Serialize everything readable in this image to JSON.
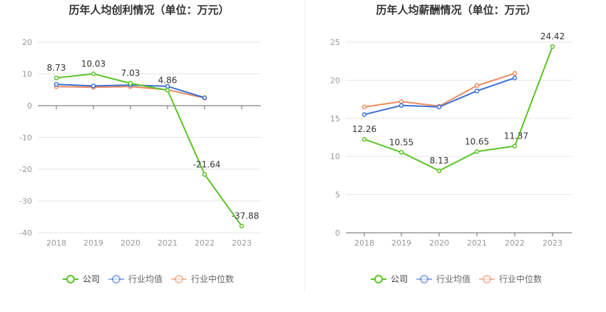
{
  "colors": {
    "company": "#5ac428",
    "industry_avg": "#3b6fd6",
    "industry_median": "#ee8a5f",
    "grid": "#e6e6e6",
    "axis_text": "#999999",
    "title": "#333333"
  },
  "legend": [
    {
      "key": "company",
      "label": "公司"
    },
    {
      "key": "industry_avg",
      "label": "行业均值"
    },
    {
      "key": "industry_median",
      "label": "行业中位数"
    }
  ],
  "chart_data": [
    {
      "type": "line",
      "title": "历年人均创利情况（单位：万元）",
      "categories": [
        "2018",
        "2019",
        "2020",
        "2021",
        "2022",
        "2023"
      ],
      "ylim": [
        -40,
        20
      ],
      "yticks": [
        20,
        10,
        0,
        -10,
        -20,
        -30,
        -40
      ],
      "grid": true,
      "legend_position": "bottom",
      "series": [
        {
          "key": "company",
          "name": "公司",
          "values": [
            8.73,
            10.03,
            7.03,
            4.86,
            -21.64,
            -37.88
          ],
          "labels": [
            "8.73",
            "10.03",
            "7.03",
            "4.86",
            "-21.64",
            "-37.88"
          ]
        },
        {
          "key": "industry_avg",
          "name": "行业均值",
          "values": [
            6.7,
            6.2,
            6.5,
            6.1,
            2.5,
            null
          ]
        },
        {
          "key": "industry_median",
          "name": "行业中位数",
          "values": [
            6.0,
            5.8,
            6.0,
            5.0,
            2.4,
            null
          ]
        }
      ]
    },
    {
      "type": "line",
      "title": "历年人均薪酬情况（单位：万元）",
      "categories": [
        "2018",
        "2019",
        "2020",
        "2021",
        "2022",
        "2023"
      ],
      "ylim": [
        0,
        25
      ],
      "yticks": [
        25,
        20,
        15,
        10,
        5,
        0
      ],
      "grid": true,
      "legend_position": "bottom",
      "series": [
        {
          "key": "company",
          "name": "公司",
          "values": [
            12.26,
            10.55,
            8.13,
            10.65,
            11.37,
            24.42
          ],
          "labels": [
            "12.26",
            "10.55",
            "8.13",
            "10.65",
            "11.37",
            "24.42"
          ]
        },
        {
          "key": "industry_avg",
          "name": "行业均值",
          "values": [
            15.5,
            16.7,
            16.5,
            18.6,
            20.3,
            null
          ]
        },
        {
          "key": "industry_median",
          "name": "行业中位数",
          "values": [
            16.5,
            17.2,
            16.6,
            19.3,
            20.9,
            null
          ]
        }
      ]
    }
  ]
}
